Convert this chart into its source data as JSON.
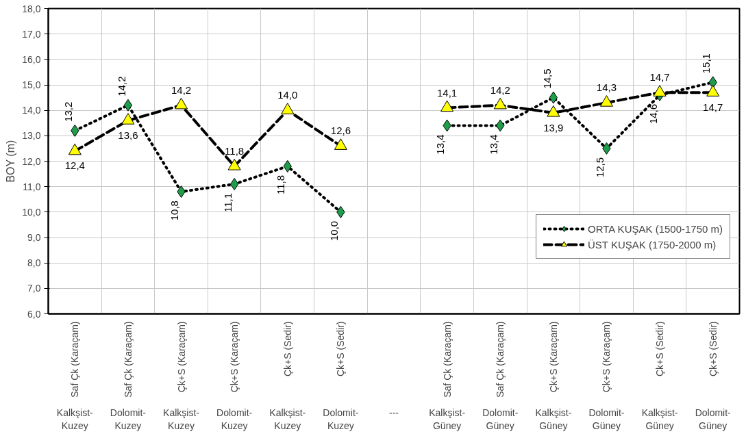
{
  "chart_data": {
    "type": "line",
    "ylabel": "BOY (m)",
    "categories": [
      "Saf Çk (Karaçam)\nKalkşist-\nKuzey",
      "Saf Çk (Karaçam)\nDolomit-\nKuzey",
      "Çk+S (Karaçam)\nKalkşist-\nKuzey",
      "Çk+S (Karaçam)\nDolomit-\nKuzey",
      "Çk+S (Sedir)\nKalkşist-\nKuzey",
      "Çk+S (Sedir)\nDolomit-\nKuzey",
      null,
      "Saf Çk (Karaçam)\nKalkşist-\nGüney",
      "Saf Çk (Karaçam)\nDolomit-\nGüney",
      "Çk+S (Karaçam)\nKalkşist-\nGüney",
      "Çk+S (Karaçam)\nDolomit-\nGüney",
      "Çk+S (Sedir)\nKalkşist-\nGüney",
      "Çk+S (Sedir)\nDolomit-\nGüney"
    ],
    "series": [
      {
        "name": "ORTA KUŞAK (1500-1750 m)",
        "color": "#1e9e4a",
        "marker": "diamond",
        "line_style": "dotted",
        "values": [
          13.2,
          14.2,
          10.8,
          11.1,
          11.8,
          10.0,
          null,
          13.4,
          13.4,
          14.5,
          12.5,
          14.6,
          15.1
        ],
        "value_labels": [
          "13,2",
          "14,2",
          "10,8",
          "11,1",
          "11,8",
          "10,0",
          null,
          "13,4",
          "13,4",
          "14,5",
          "12,5",
          "14,6",
          "15,1"
        ]
      },
      {
        "name": "ÜST KUŞAK (1750-2000 m)",
        "color": "#ffff00",
        "marker": "triangle",
        "line_style": "dashed",
        "values": [
          12.4,
          13.6,
          14.2,
          11.8,
          14.0,
          12.6,
          null,
          14.1,
          14.2,
          13.9,
          14.3,
          14.7,
          14.7
        ],
        "value_labels": [
          "12,4",
          "13,6",
          "14,2",
          "11,8",
          "14,0",
          "12,6",
          null,
          "14,1",
          "14,2",
          "13,9",
          "14,3",
          "14,7",
          "14,7"
        ]
      }
    ],
    "ylim": [
      6,
      18
    ],
    "yticks": [
      {
        "value": 6,
        "label": "6,0"
      },
      {
        "value": 7,
        "label": "7,0"
      },
      {
        "value": 8,
        "label": "8,0"
      },
      {
        "value": 9,
        "label": "9,0"
      },
      {
        "value": 10,
        "label": "10,0"
      },
      {
        "value": 11,
        "label": "11,0"
      },
      {
        "value": 12,
        "label": "12,0"
      },
      {
        "value": 13,
        "label": "13,0"
      },
      {
        "value": 14,
        "label": "14,0"
      },
      {
        "value": 15,
        "label": "15,0"
      },
      {
        "value": 16,
        "label": "16,0"
      },
      {
        "value": 17,
        "label": "17,0"
      },
      {
        "value": 18,
        "label": "18,0"
      }
    ],
    "annotations": [
      "---"
    ],
    "grid": true,
    "legend": "bottom right"
  }
}
